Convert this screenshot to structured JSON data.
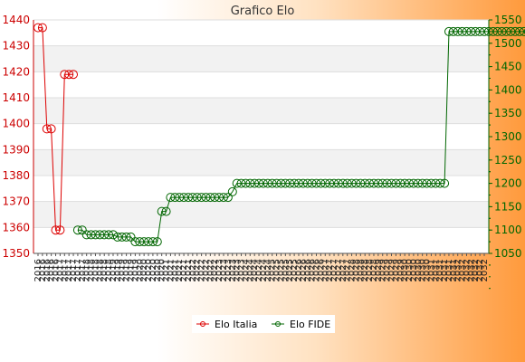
{
  "chart_data": {
    "type": "line",
    "title": "Grafico Elo",
    "xlabel": "",
    "ylabel": "",
    "y_left_lim": [
      1350,
      1440
    ],
    "y_right_lim": [
      1050,
      1550
    ],
    "y_left_ticks": [
      1350,
      1360,
      1370,
      1380,
      1390,
      1400,
      1410,
      1420,
      1430,
      1440
    ],
    "y_right_ticks": [
      1050,
      1100,
      1150,
      1200,
      1250,
      1300,
      1350,
      1400,
      1450,
      1500,
      1550
    ],
    "x_tick_labels": [
      "2016",
      "2016",
      "2016",
      "2016",
      "2016",
      "2017",
      "2017",
      "2017",
      "2017",
      "2017",
      "2017",
      "2018",
      "2018",
      "2018",
      "2018",
      "2018",
      "2018",
      "2019",
      "2019",
      "2019",
      "2019",
      "2019",
      "2019",
      "2020",
      "2020",
      "2020",
      "2020",
      "2020",
      "2020",
      "2021",
      "2021",
      "2021",
      "2021",
      "2021",
      "2021",
      "2022",
      "2022",
      "2022",
      "2022",
      "2022",
      "2022",
      "2023",
      "2023",
      "2023",
      "2023",
      "2023",
      "2023",
      "2024",
      "2024",
      "2024",
      "2024",
      "2024",
      "2024",
      "2025",
      "2025",
      "2025",
      "2025",
      "2025",
      "2025",
      "2026",
      "2026",
      "2026",
      "2026",
      "2026",
      "2026",
      "2027",
      "2027",
      "2027",
      "2027",
      "2027",
      "2027",
      "2028",
      "2028",
      "2028",
      "2028",
      "2028",
      "2028",
      "2029",
      "2029",
      "2029",
      "2029",
      "2029",
      "2029",
      "2030",
      "2030",
      "2030",
      "2030",
      "2030",
      "2030",
      "2031",
      "2031",
      "2031",
      "2031",
      "2031",
      "2031",
      "2032",
      "2032",
      "2032",
      "2032",
      "2032",
      "2032",
      "2032"
    ],
    "grid": true,
    "legend_position": "bottom",
    "series": [
      {
        "name": "Elo Italia",
        "axis": "left",
        "color": "#dd0000",
        "values": [
          1437,
          1437,
          1398,
          1398,
          1359,
          1359,
          1419,
          1419,
          1419
        ]
      },
      {
        "name": "Elo FIDE",
        "axis": "right",
        "color": "#006600",
        "start_index": 9,
        "values": [
          1100,
          1100,
          1090,
          1090,
          1090,
          1090,
          1090,
          1090,
          1090,
          1085,
          1085,
          1085,
          1085,
          1075,
          1075,
          1075,
          1075,
          1075,
          1075,
          1140,
          1140,
          1170,
          1170,
          1170,
          1170,
          1170,
          1170,
          1170,
          1170,
          1170,
          1170,
          1170,
          1170,
          1170,
          1170,
          1182,
          1200,
          1200,
          1200,
          1200,
          1200,
          1200,
          1200,
          1200,
          1200,
          1200,
          1200,
          1200,
          1200,
          1200,
          1200,
          1200,
          1200,
          1200,
          1200,
          1200,
          1200,
          1200,
          1200,
          1200,
          1200,
          1200,
          1200,
          1200,
          1200,
          1200,
          1200,
          1200,
          1200,
          1200,
          1200,
          1200,
          1200,
          1200,
          1200,
          1200,
          1200,
          1200,
          1200,
          1200,
          1200,
          1200,
          1200,
          1200,
          1525,
          1525,
          1525,
          1525,
          1525,
          1525,
          1525,
          1525,
          1525,
          1525,
          1525,
          1525,
          1525,
          1525,
          1525,
          1525,
          1525,
          1525,
          1525,
          1525,
          1525,
          1525,
          1525
        ]
      }
    ]
  }
}
